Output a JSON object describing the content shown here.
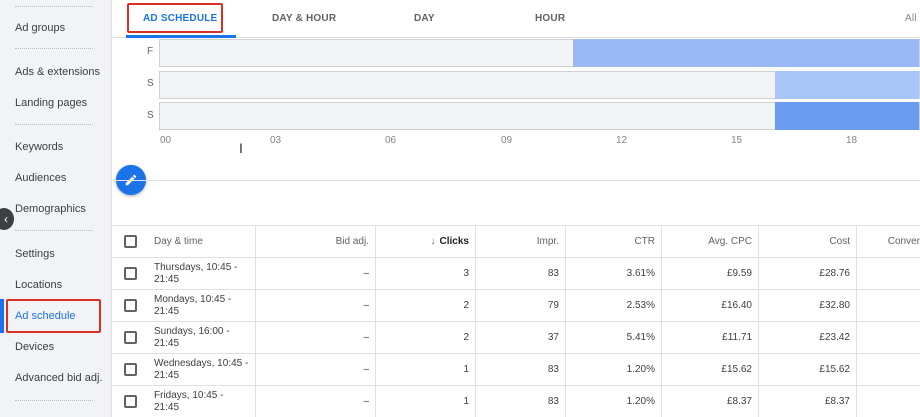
{
  "sidebar": {
    "items": [
      {
        "label": "Ad groups"
      },
      {
        "label": "Ads & extensions"
      },
      {
        "label": "Landing pages"
      },
      {
        "label": "Keywords"
      },
      {
        "label": "Audiences"
      },
      {
        "label": "Demographics"
      },
      {
        "label": "Settings"
      },
      {
        "label": "Locations"
      },
      {
        "label": "Ad schedule"
      },
      {
        "label": "Devices"
      },
      {
        "label": "Advanced bid adj."
      }
    ],
    "active": "Ad schedule"
  },
  "tabs": {
    "items": [
      {
        "label": "AD SCHEDULE"
      },
      {
        "label": "DAY & HOUR"
      },
      {
        "label": "DAY"
      },
      {
        "label": "HOUR"
      },
      {
        "label": "All"
      }
    ],
    "active": "AD SCHEDULE"
  },
  "schedule": {
    "days": [
      "F",
      "S",
      "S"
    ],
    "hours": [
      "00",
      "03",
      "06",
      "09",
      "12",
      "15",
      "18"
    ],
    "colors": {
      "light": "#9ab8f5",
      "mid": "#a9c4f6",
      "dark": "#6c9cf0"
    }
  },
  "table": {
    "headers": {
      "day_time": "Day & time",
      "bid_adj": "Bid adj.",
      "clicks": "Clicks",
      "impr": "Impr.",
      "ctr": "CTR",
      "avg_cpc": "Avg. CPC",
      "cost": "Cost",
      "conv": "Conver"
    },
    "rows": [
      {
        "day": "Thursdays, 10:45 -",
        "day2": "21:45",
        "bid": "–",
        "clicks": "3",
        "impr": "83",
        "ctr": "3.61%",
        "cpc": "£9.59",
        "cost": "£28.76"
      },
      {
        "day": "Mondays, 10:45 -",
        "day2": "21:45",
        "bid": "–",
        "clicks": "2",
        "impr": "79",
        "ctr": "2.53%",
        "cpc": "£16.40",
        "cost": "£32.80"
      },
      {
        "day": "Sundays, 16:00 - 21:45",
        "day2": "",
        "bid": "–",
        "clicks": "2",
        "impr": "37",
        "ctr": "5.41%",
        "cpc": "£11.71",
        "cost": "£23.42"
      },
      {
        "day": "Wednesdays, 10:45 -",
        "day2": "21:45",
        "bid": "–",
        "clicks": "1",
        "impr": "83",
        "ctr": "1.20%",
        "cpc": "£15.62",
        "cost": "£15.62"
      },
      {
        "day": "Fridays, 10:45 - 21:45",
        "day2": "",
        "bid": "–",
        "clicks": "1",
        "impr": "83",
        "ctr": "1.20%",
        "cpc": "£8.37",
        "cost": "£8.37"
      }
    ]
  }
}
